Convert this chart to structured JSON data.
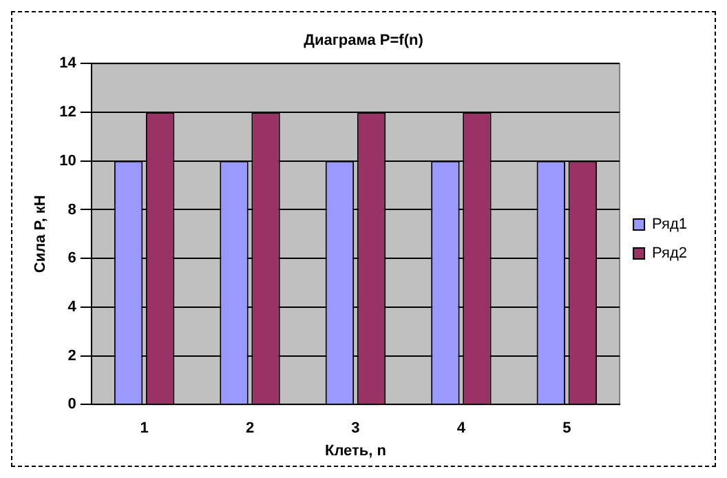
{
  "chart_data": {
    "type": "bar",
    "title": "Диаграма P=f(n)",
    "xlabel": "Клеть, n",
    "ylabel": "Сила P, кН",
    "categories": [
      "1",
      "2",
      "3",
      "4",
      "5"
    ],
    "series": [
      {
        "name": "Ряд1",
        "color": "#9999ff",
        "values": [
          10,
          10,
          10,
          10,
          10
        ]
      },
      {
        "name": "Ряд2",
        "color": "#993366",
        "values": [
          12,
          12,
          12,
          12,
          10
        ]
      }
    ],
    "ylim": [
      0,
      14
    ],
    "yticks": [
      0,
      2,
      4,
      6,
      8,
      10,
      12,
      14
    ],
    "grid": "y",
    "legend": "right"
  }
}
